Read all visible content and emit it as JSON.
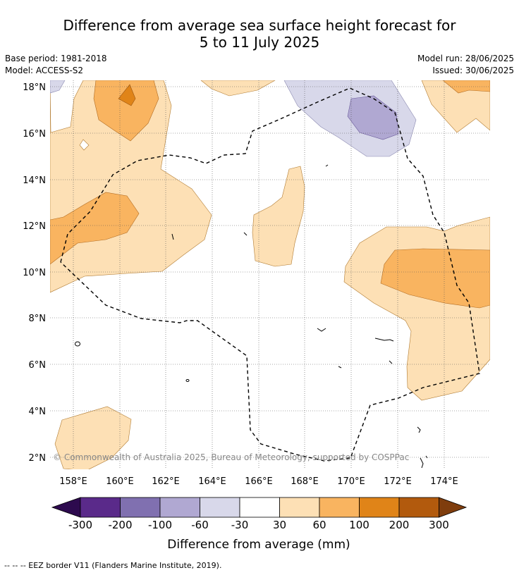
{
  "header": {
    "title_line1": "Difference from average sea surface height forecast for",
    "title_line2": "5 to 11 July 2025",
    "base_period": "Base period: 1981-2018",
    "model": "Model: ACCESS-S2",
    "model_run": "Model run: 28/06/2025",
    "issued": "Issued: 30/06/2025"
  },
  "map": {
    "lat_labels": [
      "18°N",
      "16°N",
      "14°N",
      "12°N",
      "10°N",
      "8°N",
      "6°N",
      "4°N",
      "2°N"
    ],
    "lon_labels": [
      "158°E",
      "160°E",
      "162°E",
      "164°E",
      "166°E",
      "168°E",
      "170°E",
      "172°E",
      "174°E"
    ],
    "copyright": "© Commonwealth of Australia 2025, Bureau of Meteorology, supported by COSPPac"
  },
  "colorbar": {
    "ticks": [
      "-300",
      "-200",
      "-100",
      "-60",
      "-30",
      "30",
      "60",
      "100",
      "200",
      "300"
    ],
    "colors": [
      "#2d0a4e",
      "#5a2a8a",
      "#8070b0",
      "#b0a8d2",
      "#d8d8ea",
      "#ffffff",
      "#fde0b5",
      "#f9b460",
      "#e08418",
      "#b25a0d",
      "#7f3d0d"
    ],
    "label": "Difference from average (mm)"
  },
  "footer": {
    "eez_note": "-- -- -- EEZ border V11 (Flanders Marine Institute, 2019)."
  }
}
